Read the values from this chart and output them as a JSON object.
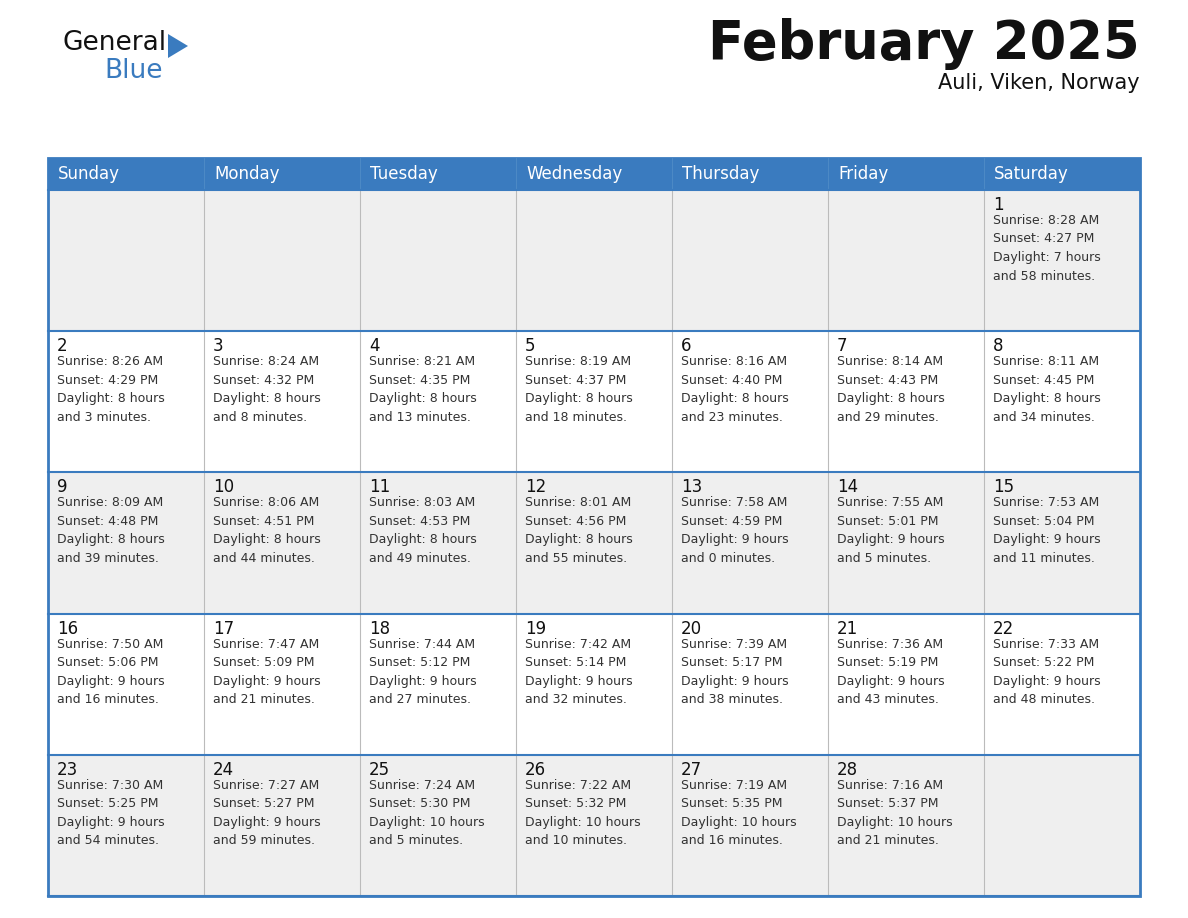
{
  "title": "February 2025",
  "subtitle": "Auli, Viken, Norway",
  "header_color": "#3a7bbf",
  "header_text_color": "#ffffff",
  "border_color": "#3a7bbf",
  "row_separator_color": "#3a7bbf",
  "cell_border_color": "#cccccc",
  "cell_bg_odd": "#efefef",
  "cell_bg_even": "#ffffff",
  "days_of_week": [
    "Sunday",
    "Monday",
    "Tuesday",
    "Wednesday",
    "Thursday",
    "Friday",
    "Saturday"
  ],
  "calendar_data": [
    [
      {
        "day": "",
        "info": ""
      },
      {
        "day": "",
        "info": ""
      },
      {
        "day": "",
        "info": ""
      },
      {
        "day": "",
        "info": ""
      },
      {
        "day": "",
        "info": ""
      },
      {
        "day": "",
        "info": ""
      },
      {
        "day": "1",
        "info": "Sunrise: 8:28 AM\nSunset: 4:27 PM\nDaylight: 7 hours\nand 58 minutes."
      }
    ],
    [
      {
        "day": "2",
        "info": "Sunrise: 8:26 AM\nSunset: 4:29 PM\nDaylight: 8 hours\nand 3 minutes."
      },
      {
        "day": "3",
        "info": "Sunrise: 8:24 AM\nSunset: 4:32 PM\nDaylight: 8 hours\nand 8 minutes."
      },
      {
        "day": "4",
        "info": "Sunrise: 8:21 AM\nSunset: 4:35 PM\nDaylight: 8 hours\nand 13 minutes."
      },
      {
        "day": "5",
        "info": "Sunrise: 8:19 AM\nSunset: 4:37 PM\nDaylight: 8 hours\nand 18 minutes."
      },
      {
        "day": "6",
        "info": "Sunrise: 8:16 AM\nSunset: 4:40 PM\nDaylight: 8 hours\nand 23 minutes."
      },
      {
        "day": "7",
        "info": "Sunrise: 8:14 AM\nSunset: 4:43 PM\nDaylight: 8 hours\nand 29 minutes."
      },
      {
        "day": "8",
        "info": "Sunrise: 8:11 AM\nSunset: 4:45 PM\nDaylight: 8 hours\nand 34 minutes."
      }
    ],
    [
      {
        "day": "9",
        "info": "Sunrise: 8:09 AM\nSunset: 4:48 PM\nDaylight: 8 hours\nand 39 minutes."
      },
      {
        "day": "10",
        "info": "Sunrise: 8:06 AM\nSunset: 4:51 PM\nDaylight: 8 hours\nand 44 minutes."
      },
      {
        "day": "11",
        "info": "Sunrise: 8:03 AM\nSunset: 4:53 PM\nDaylight: 8 hours\nand 49 minutes."
      },
      {
        "day": "12",
        "info": "Sunrise: 8:01 AM\nSunset: 4:56 PM\nDaylight: 8 hours\nand 55 minutes."
      },
      {
        "day": "13",
        "info": "Sunrise: 7:58 AM\nSunset: 4:59 PM\nDaylight: 9 hours\nand 0 minutes."
      },
      {
        "day": "14",
        "info": "Sunrise: 7:55 AM\nSunset: 5:01 PM\nDaylight: 9 hours\nand 5 minutes."
      },
      {
        "day": "15",
        "info": "Sunrise: 7:53 AM\nSunset: 5:04 PM\nDaylight: 9 hours\nand 11 minutes."
      }
    ],
    [
      {
        "day": "16",
        "info": "Sunrise: 7:50 AM\nSunset: 5:06 PM\nDaylight: 9 hours\nand 16 minutes."
      },
      {
        "day": "17",
        "info": "Sunrise: 7:47 AM\nSunset: 5:09 PM\nDaylight: 9 hours\nand 21 minutes."
      },
      {
        "day": "18",
        "info": "Sunrise: 7:44 AM\nSunset: 5:12 PM\nDaylight: 9 hours\nand 27 minutes."
      },
      {
        "day": "19",
        "info": "Sunrise: 7:42 AM\nSunset: 5:14 PM\nDaylight: 9 hours\nand 32 minutes."
      },
      {
        "day": "20",
        "info": "Sunrise: 7:39 AM\nSunset: 5:17 PM\nDaylight: 9 hours\nand 38 minutes."
      },
      {
        "day": "21",
        "info": "Sunrise: 7:36 AM\nSunset: 5:19 PM\nDaylight: 9 hours\nand 43 minutes."
      },
      {
        "day": "22",
        "info": "Sunrise: 7:33 AM\nSunset: 5:22 PM\nDaylight: 9 hours\nand 48 minutes."
      }
    ],
    [
      {
        "day": "23",
        "info": "Sunrise: 7:30 AM\nSunset: 5:25 PM\nDaylight: 9 hours\nand 54 minutes."
      },
      {
        "day": "24",
        "info": "Sunrise: 7:27 AM\nSunset: 5:27 PM\nDaylight: 9 hours\nand 59 minutes."
      },
      {
        "day": "25",
        "info": "Sunrise: 7:24 AM\nSunset: 5:30 PM\nDaylight: 10 hours\nand 5 minutes."
      },
      {
        "day": "26",
        "info": "Sunrise: 7:22 AM\nSunset: 5:32 PM\nDaylight: 10 hours\nand 10 minutes."
      },
      {
        "day": "27",
        "info": "Sunrise: 7:19 AM\nSunset: 5:35 PM\nDaylight: 10 hours\nand 16 minutes."
      },
      {
        "day": "28",
        "info": "Sunrise: 7:16 AM\nSunset: 5:37 PM\nDaylight: 10 hours\nand 21 minutes."
      },
      {
        "day": "",
        "info": ""
      }
    ]
  ],
  "title_fontsize": 38,
  "subtitle_fontsize": 15,
  "header_fontsize": 12,
  "day_number_fontsize": 12,
  "info_fontsize": 9
}
